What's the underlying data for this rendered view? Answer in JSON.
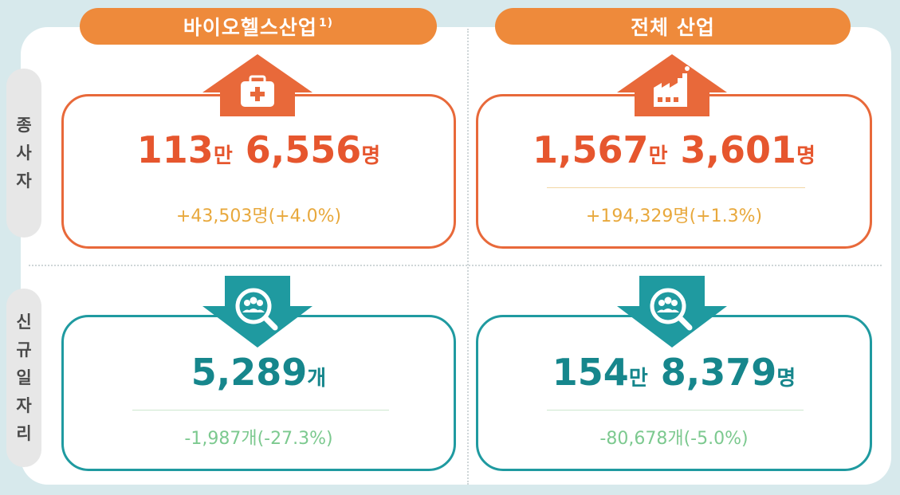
{
  "columns": {
    "bio": {
      "title": "바이오헬스산업",
      "note": "1)"
    },
    "all": {
      "title": "전체 산업"
    }
  },
  "rows": {
    "employees": {
      "label_chars": [
        "종",
        "사",
        "자"
      ]
    },
    "new_jobs": {
      "label_chars": [
        "신",
        "규",
        "일",
        "자",
        "리"
      ]
    }
  },
  "cards": {
    "bio_employees": {
      "big1": "113",
      "unit1": "만",
      "big2": " 6,556",
      "unit2": "명",
      "change": "+43,503명(+4.0%)",
      "icon": "medical-kit-icon"
    },
    "all_employees": {
      "big1": "1,567",
      "unit1": "만",
      "big2": " 3,601",
      "unit2": "명",
      "change": "+194,329명(+1.3%)",
      "icon": "factory-icon"
    },
    "bio_jobs": {
      "big1": "5,289",
      "unit1": "개",
      "change": "-1,987개(-27.3%)",
      "icon": "job-search-icon"
    },
    "all_jobs": {
      "big1": "154",
      "unit1": "만",
      "big2": " 8,379",
      "unit2": "명",
      "change": "-80,678개(-5.0%)",
      "icon": "job-search-icon"
    }
  },
  "colors": {
    "orange": "#e8693a",
    "teal": "#1f9aa0",
    "header": "#ee8a3b"
  }
}
